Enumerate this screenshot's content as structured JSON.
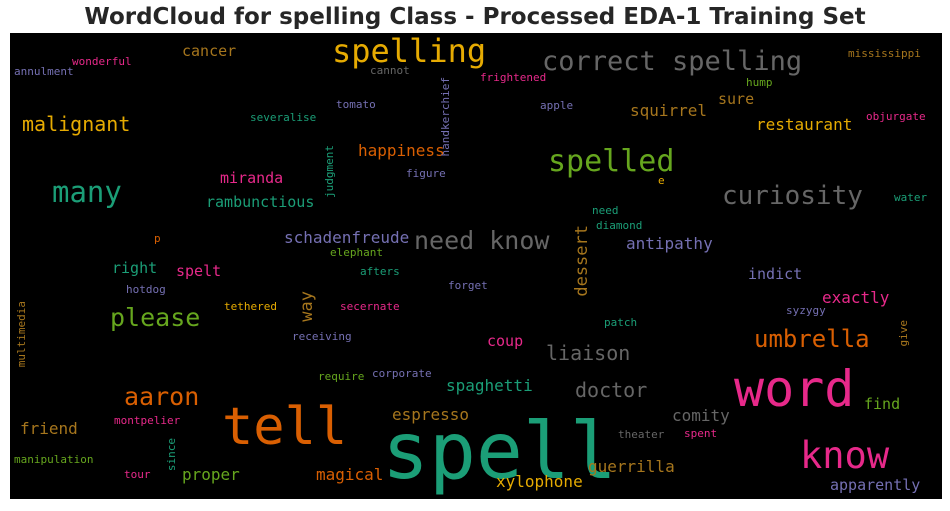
{
  "title": "WordCloud for spelling Class - Processed EDA-1 Training Set",
  "palette": {
    "teal": "#1b9e77",
    "orange": "#d95f02",
    "purple": "#7570b3",
    "pink": "#e7298a",
    "green": "#66a61e",
    "gold": "#e6ab02",
    "brown": "#a6761d",
    "gray": "#666666"
  },
  "words": [
    {
      "text": "spell",
      "color": "#1b9e77"
    },
    {
      "text": "word",
      "color": "#e7298a"
    },
    {
      "text": "tell",
      "color": "#d95f02"
    },
    {
      "text": "know",
      "color": "#e7298a"
    },
    {
      "text": "spelling",
      "color": "#e6ab02"
    },
    {
      "text": "correct spelling",
      "color": "#666666"
    },
    {
      "text": "spelled",
      "color": "#66a61e"
    },
    {
      "text": "many",
      "color": "#1b9e77"
    },
    {
      "text": "curiosity",
      "color": "#666666"
    },
    {
      "text": "need know",
      "color": "#666666"
    },
    {
      "text": "please",
      "color": "#66a61e"
    },
    {
      "text": "aaron",
      "color": "#d95f02"
    },
    {
      "text": "umbrella",
      "color": "#d95f02"
    },
    {
      "text": "malignant",
      "color": "#e6ab02"
    },
    {
      "text": "liaison",
      "color": "#666666"
    },
    {
      "text": "doctor",
      "color": "#666666"
    },
    {
      "text": "happiness",
      "color": "#d95f02"
    },
    {
      "text": "squirrel",
      "color": "#a6761d"
    },
    {
      "text": "restaurant",
      "color": "#e6ab02"
    },
    {
      "text": "antipathy",
      "color": "#7570b3"
    },
    {
      "text": "schadenfreude",
      "color": "#7570b3"
    },
    {
      "text": "exactly",
      "color": "#e7298a"
    },
    {
      "text": "comity",
      "color": "#666666"
    },
    {
      "text": "proper",
      "color": "#66a61e"
    },
    {
      "text": "friend",
      "color": "#a6761d"
    },
    {
      "text": "espresso",
      "color": "#a6761d"
    },
    {
      "text": "spaghetti",
      "color": "#1b9e77"
    },
    {
      "text": "magical",
      "color": "#d95f02"
    },
    {
      "text": "guerrilla",
      "color": "#a6761d"
    },
    {
      "text": "xylophone",
      "color": "#e6ab02"
    },
    {
      "text": "apparently",
      "color": "#7570b3"
    },
    {
      "text": "miranda",
      "color": "#e7298a"
    },
    {
      "text": "rambunctious",
      "color": "#1b9e77"
    },
    {
      "text": "right",
      "color": "#1b9e77"
    },
    {
      "text": "spelt",
      "color": "#e7298a"
    },
    {
      "text": "find",
      "color": "#66a61e"
    },
    {
      "text": "indict",
      "color": "#7570b3"
    },
    {
      "text": "sure",
      "color": "#a6761d"
    },
    {
      "text": "coup",
      "color": "#e7298a"
    },
    {
      "text": "cancer",
      "color": "#a6761d"
    },
    {
      "text": "dessert",
      "color": "#a6761d"
    },
    {
      "text": "way",
      "color": "#a6761d"
    },
    {
      "text": "judgment",
      "color": "#1b9e77"
    },
    {
      "text": "handkerchief",
      "color": "#7570b3"
    },
    {
      "text": "wonderful",
      "color": "#e7298a"
    },
    {
      "text": "annulment",
      "color": "#7570b3"
    },
    {
      "text": "cannot",
      "color": "#666666"
    },
    {
      "text": "frightened",
      "color": "#e7298a"
    },
    {
      "text": "mississippi",
      "color": "#a6761d"
    },
    {
      "text": "hump",
      "color": "#66a61e"
    },
    {
      "text": "tomato",
      "color": "#7570b3"
    },
    {
      "text": "apple",
      "color": "#7570b3"
    },
    {
      "text": "severalise",
      "color": "#1b9e77"
    },
    {
      "text": "objurgate",
      "color": "#e7298a"
    },
    {
      "text": "figure",
      "color": "#7570b3"
    },
    {
      "text": "e",
      "color": "#e6ab02"
    },
    {
      "text": "water",
      "color": "#1b9e77"
    },
    {
      "text": "need",
      "color": "#1b9e77"
    },
    {
      "text": "diamond",
      "color": "#1b9e77"
    },
    {
      "text": "p",
      "color": "#d95f02"
    },
    {
      "text": "elephant",
      "color": "#66a61e"
    },
    {
      "text": "afters",
      "color": "#1b9e77"
    },
    {
      "text": "hotdog",
      "color": "#7570b3"
    },
    {
      "text": "forget",
      "color": "#7570b3"
    },
    {
      "text": "tethered",
      "color": "#e6ab02"
    },
    {
      "text": "secernate",
      "color": "#e7298a"
    },
    {
      "text": "syzygy",
      "color": "#7570b3"
    },
    {
      "text": "patch",
      "color": "#1b9e77"
    },
    {
      "text": "multimedia",
      "color": "#a6761d"
    },
    {
      "text": "receiving",
      "color": "#7570b3"
    },
    {
      "text": "give",
      "color": "#a6761d"
    },
    {
      "text": "require",
      "color": "#66a61e"
    },
    {
      "text": "corporate",
      "color": "#7570b3"
    },
    {
      "text": "montpelier",
      "color": "#e7298a"
    },
    {
      "text": "theater",
      "color": "#666666"
    },
    {
      "text": "spent",
      "color": "#e7298a"
    },
    {
      "text": "manipulation",
      "color": "#66a61e"
    },
    {
      "text": "since",
      "color": "#1b9e77"
    },
    {
      "text": "tour",
      "color": "#e7298a"
    }
  ]
}
